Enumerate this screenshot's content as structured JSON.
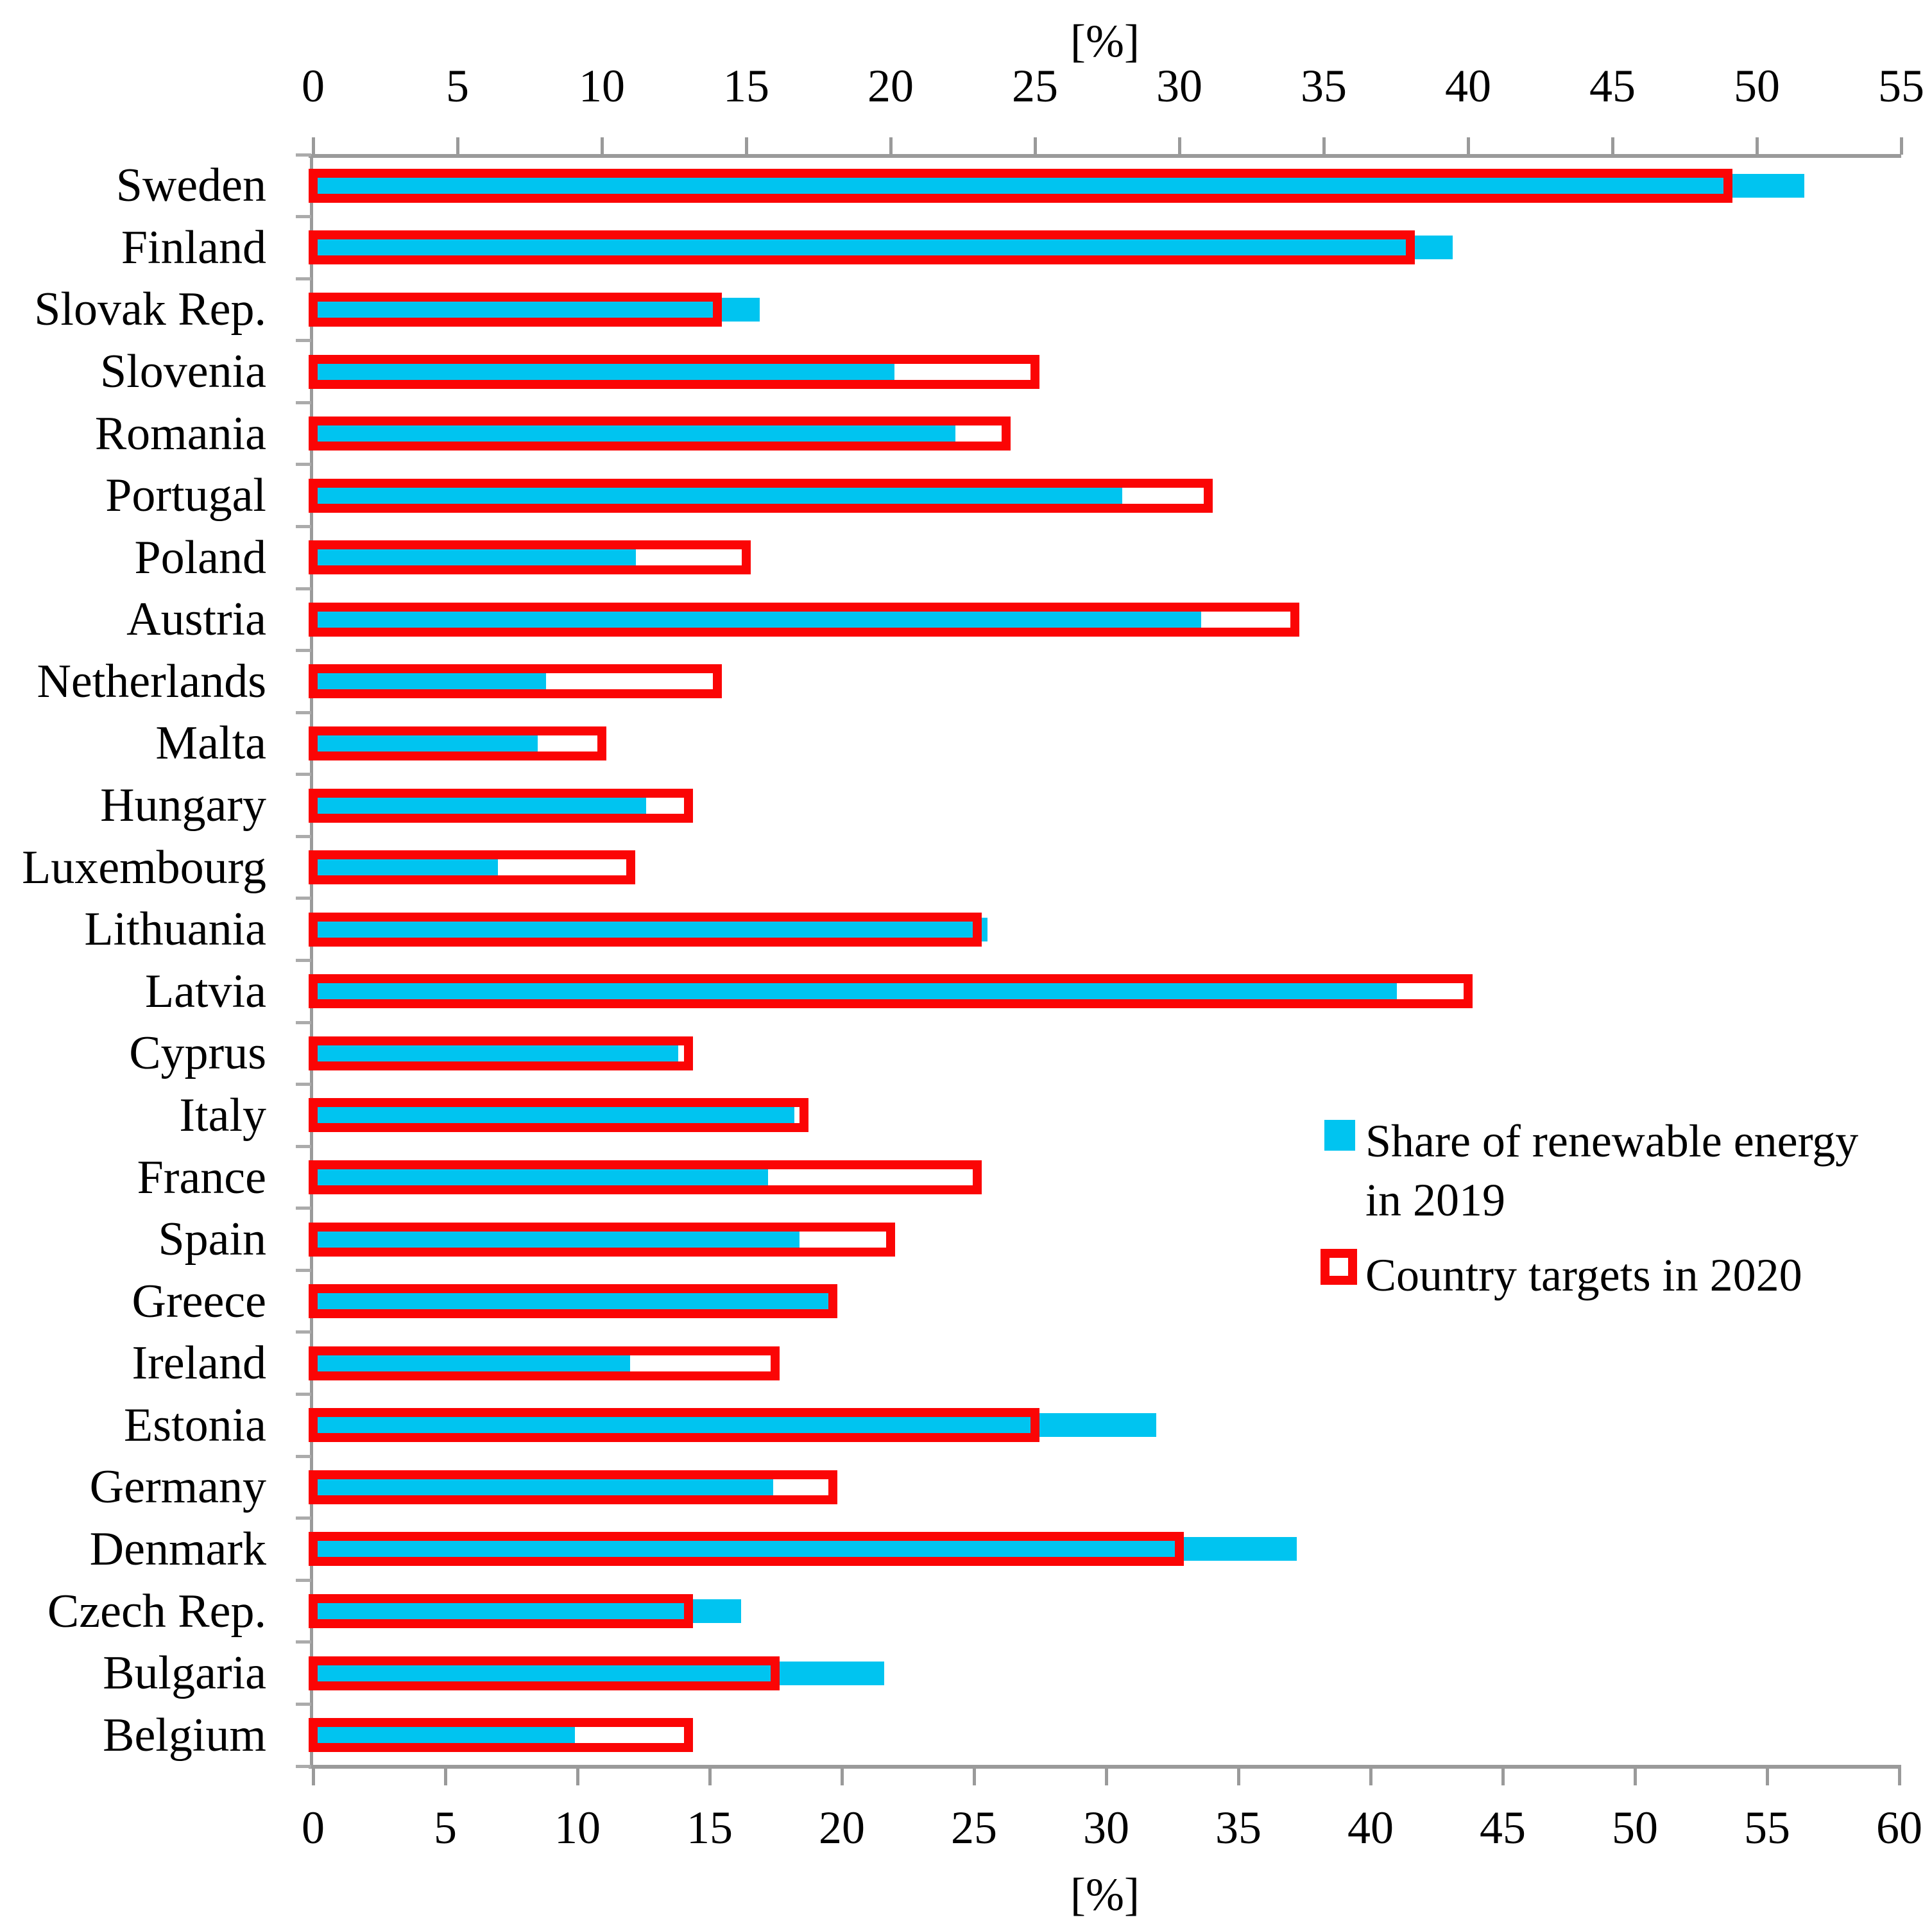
{
  "chart_data": {
    "type": "bar",
    "orientation": "horizontal",
    "title": "",
    "categories": [
      "Sweden",
      "Finland",
      "Slovak Rep.",
      "Slovenia",
      "Romania",
      "Portugal",
      "Poland",
      "Austria",
      "Netherlands",
      "Malta",
      "Hungary",
      "Luxembourg",
      "Lithuania",
      "Latvia",
      "Cyprus",
      "Italy",
      "France",
      "Spain",
      "Greece",
      "Ireland",
      "Estonia",
      "Germany",
      "Denmark",
      "Czech Rep.",
      "Bulgaria",
      "Belgium"
    ],
    "series": [
      {
        "name": "Share of renewable energy in 2019",
        "axis": "bottom",
        "style": "solid",
        "color": "#00c4f0",
        "values": [
          56.4,
          43.1,
          16.9,
          22.0,
          24.3,
          30.6,
          12.2,
          33.6,
          8.8,
          8.5,
          12.6,
          7.0,
          25.5,
          41.0,
          13.8,
          18.2,
          17.2,
          18.4,
          19.7,
          12.0,
          31.9,
          17.4,
          37.2,
          16.2,
          21.6,
          9.9
        ]
      },
      {
        "name": "Country targets in 2020",
        "axis": "top",
        "style": "outline",
        "color": "#fb0505",
        "values": [
          49,
          38,
          14,
          25,
          24,
          31,
          15,
          34,
          14,
          10,
          13,
          11,
          23,
          40,
          13,
          17,
          23,
          20,
          18,
          16,
          25,
          18,
          30,
          13,
          16,
          13
        ]
      }
    ],
    "axes": {
      "top": {
        "label": "[%]",
        "min": 0,
        "max": 55,
        "step": 5,
        "tick_labels": [
          "0",
          "5",
          "10",
          "15",
          "20",
          "25",
          "30",
          "35",
          "40",
          "45",
          "50",
          "55"
        ]
      },
      "bottom": {
        "label": "[%]",
        "min": 0,
        "max": 60,
        "step": 5,
        "tick_labels": [
          "0",
          "5",
          "10",
          "15",
          "20",
          "25",
          "30",
          "35",
          "40",
          "45",
          "50",
          "55",
          "60"
        ]
      }
    },
    "legend": {
      "position": "middle-right",
      "entries": [
        {
          "label_lines": [
            "Share of renewable energy",
            "in 2019"
          ],
          "swatch": "solid-cyan-square"
        },
        {
          "label_lines": [
            "Country targets in 2020"
          ],
          "swatch": "red-outline-square"
        }
      ]
    },
    "grid": "off",
    "colors": {
      "axis_line": "#9a9a9a",
      "category_tick": "#ababab",
      "text": "#000000",
      "background": "#ffffff"
    }
  }
}
